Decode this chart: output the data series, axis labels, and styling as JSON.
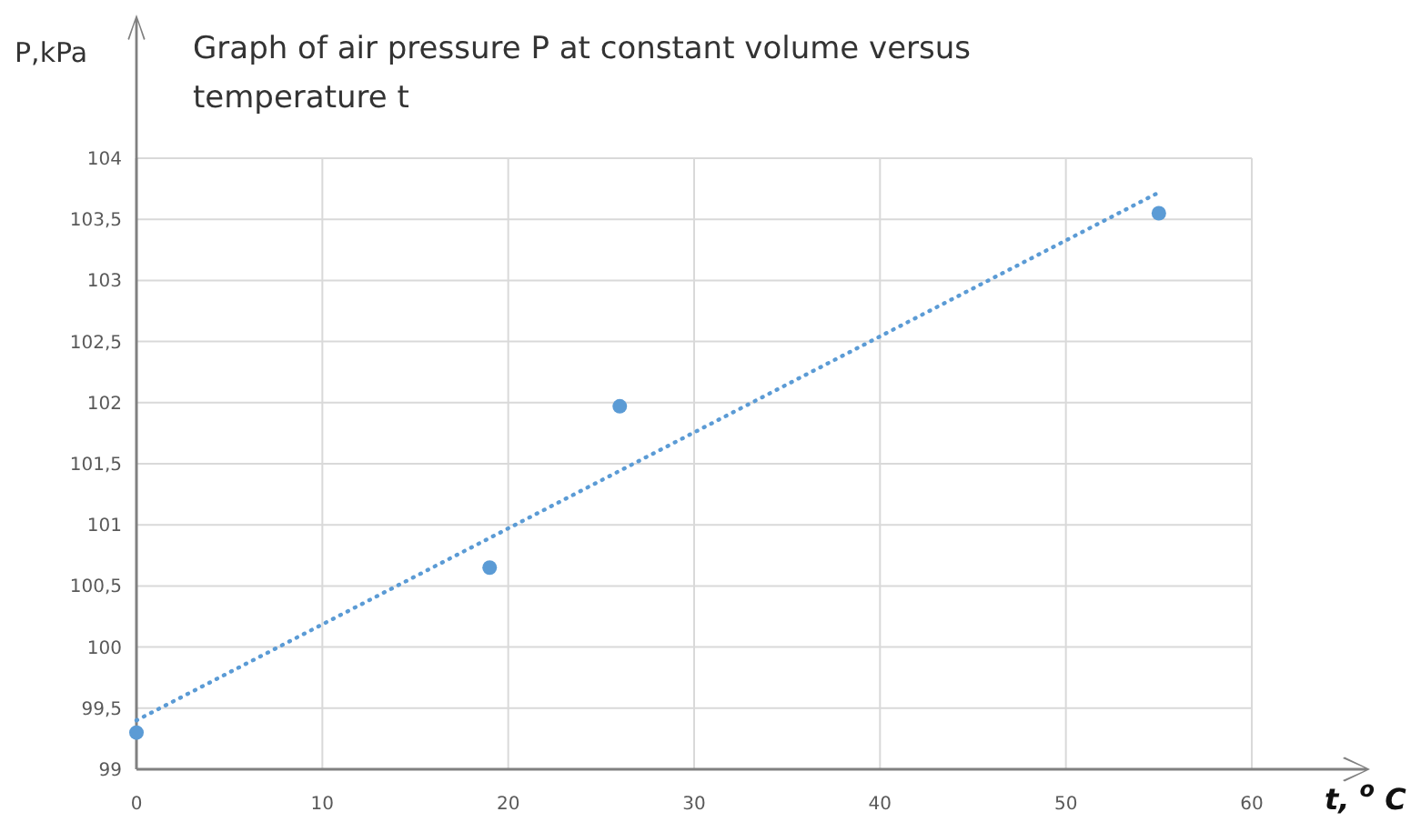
{
  "chart_data": {
    "type": "scatter",
    "title": "Graph of air pressure P at constant volume versus temperature t",
    "xlabel": "t, $^{o}$C",
    "ylabel": "P,kPa",
    "series": [
      {
        "color": "#5b9bd5",
        "x": [
          0,
          19,
          26,
          55
        ],
        "values": [
          99.3,
          100.65,
          101.97,
          103.55
        ],
        "marker": "circle"
      },
      {
        "type": "line",
        "color": "#5b9bd5",
        "x": [
          0,
          55
        ],
        "values": [
          99.4,
          103.72
        ],
        "line_style": "dotted",
        "marker": "none"
      }
    ],
    "xlim": [
      0,
      60
    ],
    "xticks": [
      0,
      10,
      20,
      30,
      40,
      50,
      60
    ],
    "ylim": [
      99,
      104
    ],
    "yticks": [
      99,
      {
        "value": 99.5,
        "label": "99,5"
      },
      100,
      {
        "value": 100.5,
        "label": "100,5"
      },
      101,
      {
        "value": 101.5,
        "label": "101,5"
      },
      102,
      {
        "value": 102.5,
        "label": "102,5"
      },
      103,
      {
        "value": 103.5,
        "label": "103,5"
      },
      104
    ],
    "grid": true
  }
}
